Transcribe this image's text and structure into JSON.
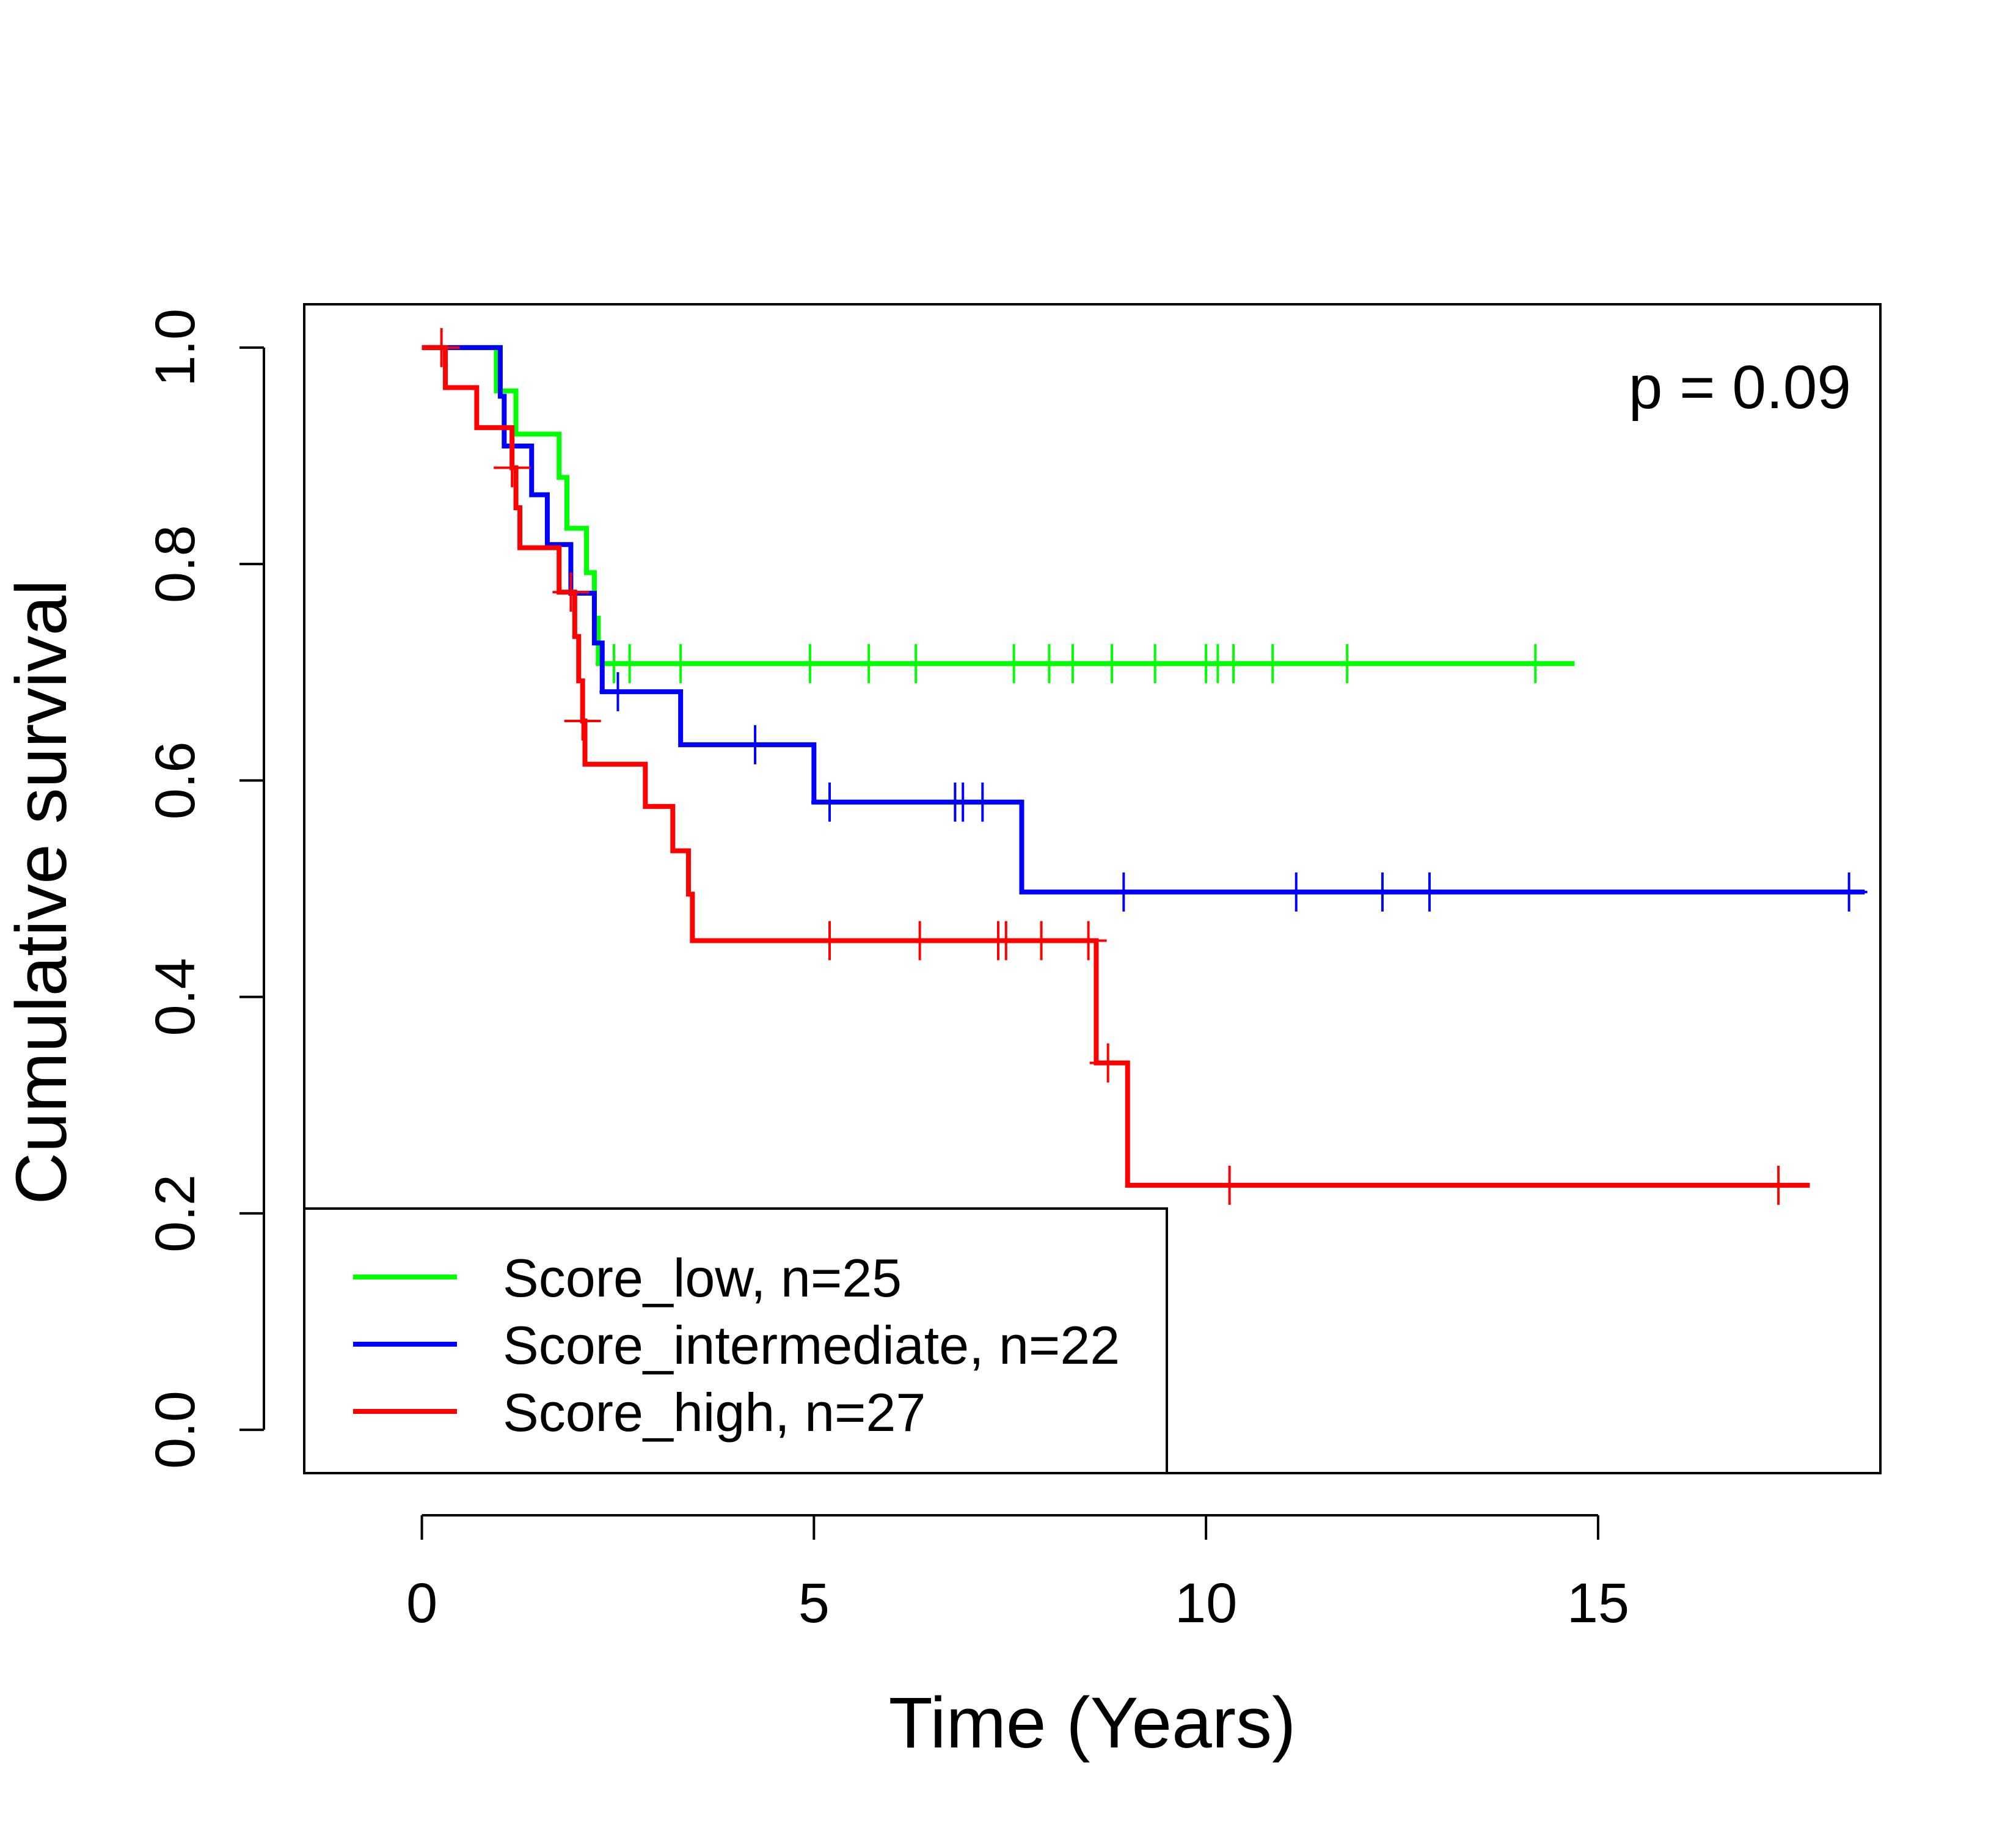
{
  "chart_data": {
    "type": "line",
    "subtype": "kaplan-meier",
    "title": "",
    "xlabel": "Time (Years)",
    "ylabel": "Cumulative survival",
    "xlim": [
      -1.5,
      18.6
    ],
    "ylim": [
      -0.04,
      1.04
    ],
    "x_ticks": [
      0,
      5,
      10,
      15
    ],
    "x_tick_labels": [
      "0",
      "5",
      "10",
      "15"
    ],
    "y_ticks": [
      0.0,
      0.2,
      0.4,
      0.6,
      0.8,
      1.0
    ],
    "y_tick_labels": [
      "0.0",
      "0.2",
      "0.4",
      "0.6",
      "0.8",
      "1.0"
    ],
    "grid": false,
    "annotation": "p = 0.09",
    "legend_position": "bottom-left",
    "series": [
      {
        "name": "Score_low, n=25",
        "color": "#00ff00",
        "steps": [
          [
            0,
            1.0
          ],
          [
            0.95,
            0.96
          ],
          [
            1.2,
            0.92
          ],
          [
            1.75,
            0.88
          ],
          [
            1.85,
            0.833
          ],
          [
            2.1,
            0.792
          ],
          [
            2.2,
            0.75
          ],
          [
            2.25,
            0.708
          ],
          [
            14.5,
            0.708
          ]
        ],
        "censored": [
          2.45,
          2.65,
          3.3,
          4.95,
          5.7,
          6.3,
          7.55,
          8.0,
          8.3,
          8.8,
          9.35,
          10.0,
          10.15,
          10.35,
          10.85,
          11.8,
          14.2
        ]
      },
      {
        "name": "Score_intermediate, n=22",
        "color": "#0000ff",
        "steps": [
          [
            0,
            1.0
          ],
          [
            1.0,
            0.955
          ],
          [
            1.05,
            0.909
          ],
          [
            1.4,
            0.864
          ],
          [
            1.6,
            0.818
          ],
          [
            1.9,
            0.773
          ],
          [
            2.2,
            0.727
          ],
          [
            2.3,
            0.682
          ],
          [
            3.3,
            0.633
          ],
          [
            5.0,
            0.58
          ],
          [
            7.65,
            0.497
          ],
          [
            18.2,
            0.497
          ]
        ],
        "censored": [
          2.5,
          4.25,
          5.2,
          6.8,
          6.9,
          7.15,
          8.95,
          11.15,
          12.25,
          12.85,
          18.2
        ]
      },
      {
        "name": "Score_high, n=27",
        "color": "#ff0000",
        "steps": [
          [
            0,
            1.0
          ],
          [
            0.3,
            0.963
          ],
          [
            0.7,
            0.926
          ],
          [
            1.15,
            0.889
          ],
          [
            1.2,
            0.852
          ],
          [
            1.25,
            0.815
          ],
          [
            1.75,
            0.774
          ],
          [
            1.95,
            0.733
          ],
          [
            2.0,
            0.692
          ],
          [
            2.05,
            0.655
          ],
          [
            2.08,
            0.615
          ],
          [
            2.85,
            0.576
          ],
          [
            3.2,
            0.535
          ],
          [
            3.4,
            0.495
          ],
          [
            3.45,
            0.452
          ],
          [
            8.6,
            0.339
          ],
          [
            9.0,
            0.226
          ],
          [
            17.5,
            0.226
          ]
        ],
        "censored": [
          0.25,
          1.15,
          1.9,
          2.05,
          5.2,
          6.35,
          7.35,
          7.45,
          7.9,
          8.5,
          8.75,
          10.3,
          17.3
        ]
      }
    ]
  }
}
